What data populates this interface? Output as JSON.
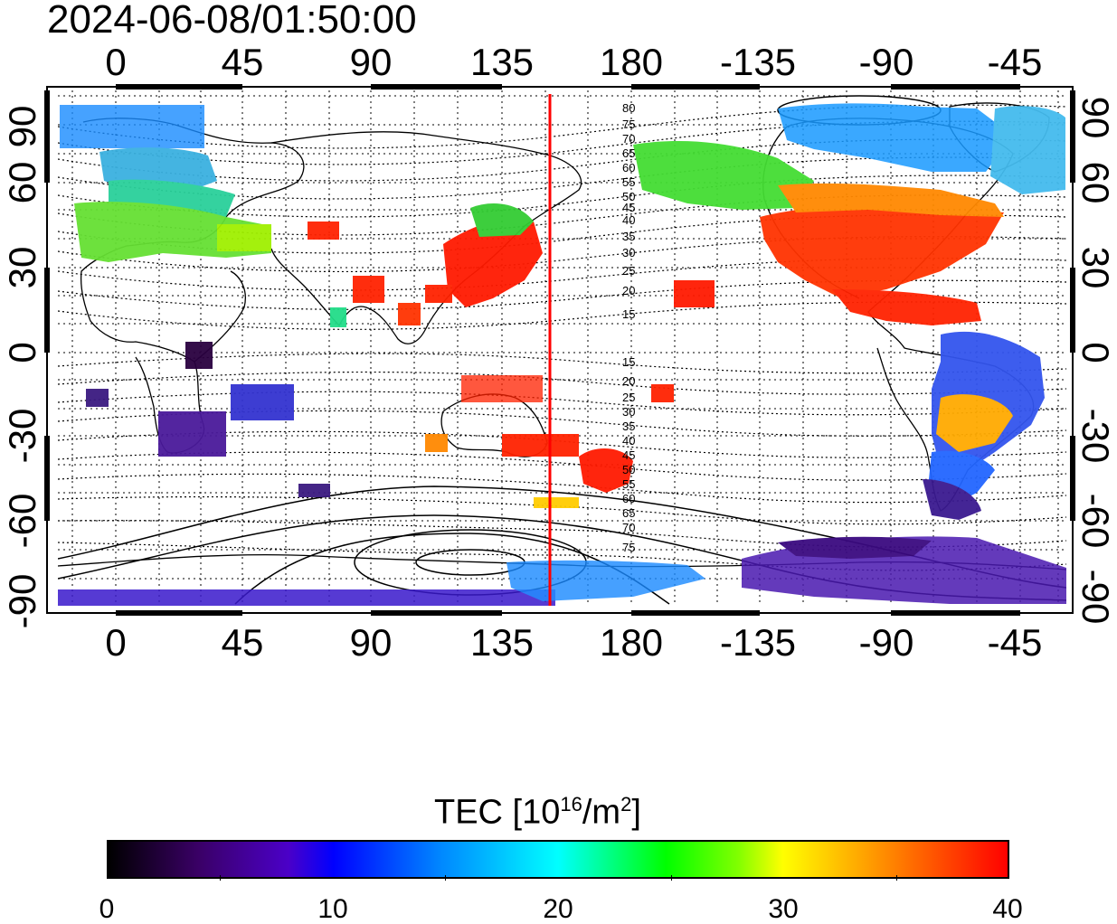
{
  "title": "2024-06-08/01:50:00",
  "top_ticks": [
    "0",
    "45",
    "90",
    "135",
    "180",
    "-135",
    "-90",
    "-45"
  ],
  "bottom_ticks": [
    "0",
    "45",
    "90",
    "135",
    "180",
    "-135",
    "-90",
    "-45"
  ],
  "left_ticks": [
    "90",
    "60",
    "30",
    "0",
    "-30",
    "-60",
    "-90"
  ],
  "right_ticks": [
    "90",
    "60",
    "30",
    "0",
    "-30",
    "-60",
    "-90"
  ],
  "contour_labels_north": [
    "80",
    "75",
    "70",
    "65",
    "60",
    "55",
    "50",
    "45",
    "40",
    "35",
    "30",
    "25",
    "20",
    "15"
  ],
  "contour_labels_south": [
    "15",
    "20",
    "25",
    "30",
    "35",
    "40",
    "45",
    "50",
    "55",
    "60",
    "65",
    "70",
    "75"
  ],
  "colorbar": {
    "title": "TEC  [10",
    "exp": "16",
    "unit": "/m",
    "exp2": "2",
    "unit_end": "]",
    "ticks": [
      "0",
      "10",
      "20",
      "30",
      "40"
    ]
  },
  "colors": {
    "meridian": "#ff0000",
    "frame": "#000000"
  }
}
